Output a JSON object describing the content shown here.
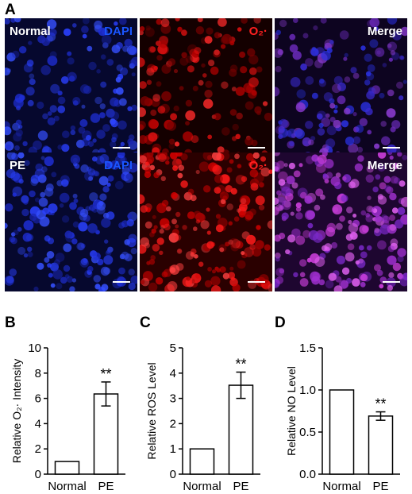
{
  "panel_letters": [
    "A",
    "B",
    "C",
    "D"
  ],
  "microscopy": {
    "rows": [
      {
        "condition": "Normal",
        "channels": [
          "DAPI",
          "O₂·",
          "Merge"
        ]
      },
      {
        "condition": "PE",
        "channels": [
          "DAPI",
          "O₂·",
          "Merge"
        ]
      }
    ],
    "colors": {
      "dapi": "#1a3cff",
      "o2": "#ff1a1a",
      "merge_label": "#ffffff"
    }
  },
  "chart_data": [
    {
      "type": "bar",
      "panel": "B",
      "categories": [
        "Normal",
        "PE"
      ],
      "values": [
        1.0,
        6.35
      ],
      "errors": [
        0,
        0.95
      ],
      "significance": [
        "",
        "**"
      ],
      "ylabel": "Relative O₂· Intensity",
      "ylim": [
        0,
        10
      ],
      "yticks": [
        "0",
        "2",
        "4",
        "6",
        "8",
        "10"
      ]
    },
    {
      "type": "bar",
      "panel": "C",
      "categories": [
        "Normal",
        "PE"
      ],
      "values": [
        1.0,
        3.52
      ],
      "errors": [
        0,
        0.52
      ],
      "significance": [
        "",
        "**"
      ],
      "ylabel": "Relative ROS Level",
      "ylim": [
        0,
        5
      ],
      "yticks": [
        "0",
        "1",
        "2",
        "3",
        "4",
        "5"
      ]
    },
    {
      "type": "bar",
      "panel": "D",
      "categories": [
        "Normal",
        "PE"
      ],
      "values": [
        1.0,
        0.69
      ],
      "errors": [
        0,
        0.05
      ],
      "significance": [
        "",
        "**"
      ],
      "ylabel": "Relative NO Level",
      "ylim": [
        0,
        1.5
      ],
      "yticks": [
        "0.0",
        "0.5",
        "1.0",
        "1.5"
      ]
    }
  ]
}
